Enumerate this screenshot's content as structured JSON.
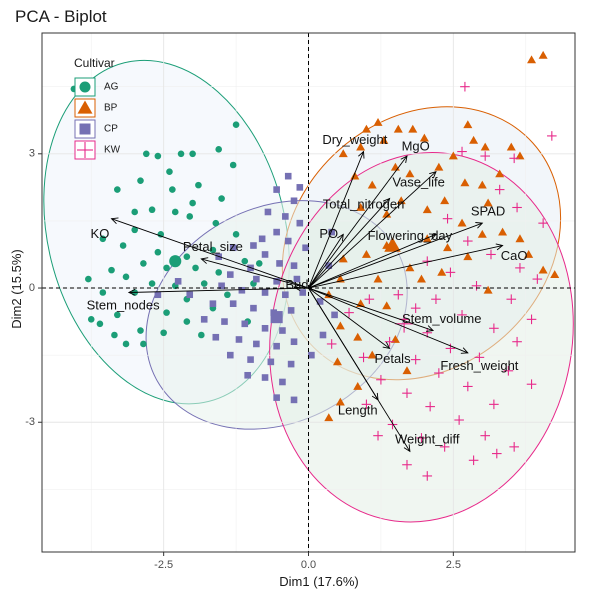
{
  "chart_data": {
    "type": "scatter",
    "title": "PCA - Biplot",
    "xlabel": "Dim1 (17.6%)",
    "ylabel": "Dim2 (15.5%)",
    "xlim": [
      -4.6,
      4.6
    ],
    "ylim": [
      -5.9,
      5.7
    ],
    "xticks": [
      -2.5,
      0.0,
      2.5
    ],
    "xtick_labels": [
      "-2.5",
      "0.0",
      "2.5"
    ],
    "yticks": [
      -3,
      0,
      3
    ],
    "ytick_labels": [
      "-3",
      "0",
      "3"
    ],
    "grid": true,
    "legend": {
      "title": "Cultivar",
      "placement": "top-left",
      "entries": [
        {
          "label": "AG",
          "marker": "circle",
          "color": "#1b9e77"
        },
        {
          "label": "BP",
          "marker": "triangle",
          "color": "#d95f02"
        },
        {
          "label": "CP",
          "marker": "square",
          "color": "#7570b3"
        },
        {
          "label": "KW",
          "marker": "plus",
          "color": "#e7298a"
        }
      ]
    },
    "variables": [
      {
        "name": "KO",
        "x": -3.4,
        "y": 1.55,
        "lx": -3.6,
        "ly": 1.2
      },
      {
        "name": "Petal_size",
        "x": -1.85,
        "y": 0.65,
        "lx": -1.65,
        "ly": 0.9
      },
      {
        "name": "Stem_nodes",
        "x": -3.1,
        "y": -0.1,
        "lx": -3.2,
        "ly": -0.4
      },
      {
        "name": "Bud",
        "x": -0.25,
        "y": 0.02,
        "lx": -0.2,
        "ly": 0.05
      },
      {
        "name": "Dry_weight",
        "x": 0.95,
        "y": 3.05,
        "lx": 0.8,
        "ly": 3.3
      },
      {
        "name": "MgO",
        "x": 1.7,
        "y": 2.95,
        "lx": 1.85,
        "ly": 3.15
      },
      {
        "name": "Vase_life",
        "x": 2.2,
        "y": 2.6,
        "lx": 1.9,
        "ly": 2.35
      },
      {
        "name": "Total_nitrogen",
        "x": 1.4,
        "y": 2.0,
        "lx": 0.95,
        "ly": 1.85
      },
      {
        "name": "SPAD",
        "x": 3.0,
        "y": 1.45,
        "lx": 3.1,
        "ly": 1.7
      },
      {
        "name": "PO",
        "x": 0.6,
        "y": 1.2,
        "lx": 0.35,
        "ly": 1.2
      },
      {
        "name": "Flowering_day",
        "x": 2.2,
        "y": 1.2,
        "lx": 1.75,
        "ly": 1.15
      },
      {
        "name": "CaO",
        "x": 3.35,
        "y": 0.95,
        "lx": 3.55,
        "ly": 0.7
      },
      {
        "name": "Stem_volume",
        "x": 2.15,
        "y": -0.95,
        "lx": 2.3,
        "ly": -0.7
      },
      {
        "name": "Fresh_weight",
        "x": 2.75,
        "y": -1.45,
        "lx": 2.95,
        "ly": -1.75
      },
      {
        "name": "Petals",
        "x": 1.4,
        "y": -1.35,
        "lx": 1.45,
        "ly": -1.6
      },
      {
        "name": "Length",
        "x": 1.2,
        "y": -2.5,
        "lx": 0.85,
        "ly": -2.75
      },
      {
        "name": "Weight_diff",
        "x": 1.75,
        "y": -3.65,
        "lx": 2.05,
        "ly": -3.4
      }
    ],
    "groups": [
      {
        "label": "AG",
        "color": "#1b9e77",
        "marker": "circle",
        "ellipse": {
          "cx": -2.45,
          "cy": 1.25,
          "rx": 2.05,
          "ry": 3.9,
          "angle": -14,
          "fill": "#eef4fb"
        },
        "centroid": [
          -2.3,
          0.6
        ],
        "points": [
          [
            -2.8,
            3.0
          ],
          [
            -2.6,
            2.95
          ],
          [
            -2.2,
            3.0
          ],
          [
            -2.0,
            3.0
          ],
          [
            -1.55,
            3.1
          ],
          [
            -1.3,
            2.75
          ],
          [
            -2.4,
            2.6
          ],
          [
            -2.9,
            2.4
          ],
          [
            -3.3,
            2.2
          ],
          [
            -1.9,
            2.3
          ],
          [
            -1.5,
            2.0
          ],
          [
            -2.7,
            1.75
          ],
          [
            -3.0,
            1.7
          ],
          [
            -2.3,
            1.7
          ],
          [
            -2.05,
            1.6
          ],
          [
            -3.55,
            1.1
          ],
          [
            -3.2,
            0.95
          ],
          [
            -2.6,
            0.8
          ],
          [
            -2.1,
            0.7
          ],
          [
            -1.65,
            0.85
          ],
          [
            -2.85,
            0.55
          ],
          [
            -2.45,
            0.45
          ],
          [
            -1.95,
            0.45
          ],
          [
            -3.4,
            0.4
          ],
          [
            -2.7,
            0.1
          ],
          [
            -2.3,
            0.05
          ],
          [
            -1.8,
            0.1
          ],
          [
            -3.55,
            -0.1
          ],
          [
            -3.0,
            -0.1
          ],
          [
            -2.1,
            -0.25
          ],
          [
            -2.45,
            -0.55
          ],
          [
            -1.65,
            -0.45
          ],
          [
            -3.6,
            -0.8
          ],
          [
            -3.3,
            -0.6
          ],
          [
            -2.9,
            -0.95
          ],
          [
            -2.5,
            -1.0
          ],
          [
            -3.15,
            -1.25
          ],
          [
            -2.85,
            -1.25
          ],
          [
            -3.35,
            -1.05
          ],
          [
            -1.85,
            -1.05
          ],
          [
            -1.05,
            -0.75
          ],
          [
            -1.55,
            0.35
          ],
          [
            -1.1,
            0.6
          ],
          [
            -0.85,
            0.55
          ],
          [
            -1.25,
            1.2
          ],
          [
            -1.6,
            1.45
          ],
          [
            -2.55,
            1.2
          ],
          [
            -3.0,
            1.3
          ],
          [
            -4.05,
            4.45
          ],
          [
            -1.25,
            3.65
          ],
          [
            -2.0,
            1.9
          ],
          [
            -2.35,
            2.2
          ],
          [
            -3.15,
            0.25
          ],
          [
            -2.1,
            -0.75
          ],
          [
            -1.4,
            -0.15
          ],
          [
            -0.95,
            0.1
          ],
          [
            -3.8,
            0.2
          ],
          [
            -3.75,
            -0.7
          ]
        ]
      },
      {
        "label": "BP",
        "color": "#d95f02",
        "marker": "triangle",
        "ellipse": {
          "cx": 1.95,
          "cy": 1.0,
          "rx": 2.15,
          "ry": 3.35,
          "angle": 48,
          "fill": "#e7eef6"
        },
        "centroid": [
          1.45,
          0.95
        ],
        "points": [
          [
            1.2,
            3.7
          ],
          [
            1.0,
            3.55
          ],
          [
            1.55,
            3.55
          ],
          [
            1.8,
            3.55
          ],
          [
            2.0,
            3.35
          ],
          [
            0.9,
            3.15
          ],
          [
            2.75,
            3.65
          ],
          [
            2.85,
            3.3
          ],
          [
            3.05,
            3.15
          ],
          [
            3.5,
            3.15
          ],
          [
            3.65,
            2.95
          ],
          [
            3.85,
            5.1
          ],
          [
            4.05,
            5.2
          ],
          [
            2.5,
            2.95
          ],
          [
            2.25,
            2.7
          ],
          [
            1.5,
            2.7
          ],
          [
            1.75,
            2.55
          ],
          [
            1.1,
            2.3
          ],
          [
            0.8,
            2.5
          ],
          [
            2.7,
            2.35
          ],
          [
            3.0,
            2.3
          ],
          [
            3.3,
            2.55
          ],
          [
            3.1,
            1.9
          ],
          [
            2.35,
            1.95
          ],
          [
            2.05,
            1.75
          ],
          [
            1.6,
            1.95
          ],
          [
            1.35,
            1.65
          ],
          [
            0.9,
            1.8
          ],
          [
            2.65,
            1.45
          ],
          [
            3.0,
            1.2
          ],
          [
            3.35,
            1.25
          ],
          [
            3.65,
            1.1
          ],
          [
            3.8,
            0.75
          ],
          [
            4.05,
            0.4
          ],
          [
            4.25,
            0.3
          ],
          [
            2.05,
            1.1
          ],
          [
            2.4,
            0.9
          ],
          [
            2.75,
            0.7
          ],
          [
            1.35,
            0.95
          ],
          [
            1.0,
            0.75
          ],
          [
            0.6,
            0.65
          ],
          [
            1.75,
            0.45
          ],
          [
            1.95,
            0.2
          ],
          [
            2.3,
            0.35
          ],
          [
            1.2,
            0.2
          ],
          [
            0.55,
            0.2
          ],
          [
            0.35,
            -0.15
          ],
          [
            0.9,
            -0.35
          ],
          [
            1.35,
            -0.4
          ],
          [
            0.55,
            -0.85
          ],
          [
            0.85,
            -1.1
          ],
          [
            1.1,
            -1.5
          ],
          [
            0.5,
            -1.65
          ],
          [
            0.85,
            -2.2
          ],
          [
            0.55,
            -2.55
          ],
          [
            0.35,
            -2.9
          ],
          [
            1.7,
            -1.85
          ],
          [
            1.5,
            -1.15
          ],
          [
            3.1,
            -0.05
          ],
          [
            1.3,
            3.3
          ],
          [
            0.6,
            3.0
          ]
        ]
      },
      {
        "label": "CP",
        "color": "#7570b3",
        "marker": "square",
        "ellipse": {
          "cx": -0.55,
          "cy": -0.6,
          "rx": 1.85,
          "ry": 3.05,
          "angle": 62,
          "fill": "#e8f3ec"
        },
        "centroid": [
          -0.55,
          -0.65
        ],
        "points": [
          [
            -0.35,
            2.5
          ],
          [
            -0.55,
            2.2
          ],
          [
            -0.25,
            1.95
          ],
          [
            -0.7,
            1.7
          ],
          [
            -0.4,
            1.6
          ],
          [
            -0.15,
            1.45
          ],
          [
            -0.55,
            1.25
          ],
          [
            -0.8,
            1.1
          ],
          [
            -0.35,
            1.05
          ],
          [
            -0.05,
            0.9
          ],
          [
            -1.3,
            0.9
          ],
          [
            -1.55,
            0.7
          ],
          [
            -0.75,
            0.75
          ],
          [
            -0.5,
            0.55
          ],
          [
            -0.25,
            0.5
          ],
          [
            -1.0,
            0.45
          ],
          [
            -1.35,
            0.3
          ],
          [
            -0.9,
            0.2
          ],
          [
            -0.55,
            0.15
          ],
          [
            -0.2,
            0.2
          ],
          [
            -1.5,
            0.05
          ],
          [
            -1.15,
            -0.05
          ],
          [
            -0.75,
            -0.1
          ],
          [
            -0.4,
            -0.15
          ],
          [
            -0.1,
            -0.1
          ],
          [
            -1.65,
            -0.35
          ],
          [
            -1.3,
            -0.35
          ],
          [
            -0.95,
            -0.45
          ],
          [
            -0.6,
            -0.55
          ],
          [
            -0.3,
            -0.5
          ],
          [
            -1.8,
            -0.7
          ],
          [
            -1.45,
            -0.75
          ],
          [
            -1.1,
            -0.8
          ],
          [
            -0.75,
            -0.9
          ],
          [
            -0.45,
            -0.95
          ],
          [
            -1.6,
            -1.1
          ],
          [
            -1.2,
            -1.15
          ],
          [
            -0.9,
            -1.25
          ],
          [
            -0.55,
            -1.3
          ],
          [
            -0.25,
            -1.2
          ],
          [
            -1.35,
            -1.5
          ],
          [
            -1.0,
            -1.6
          ],
          [
            -0.65,
            -1.65
          ],
          [
            -0.3,
            -1.7
          ],
          [
            -0.75,
            -2.0
          ],
          [
            -0.45,
            -2.1
          ],
          [
            -0.55,
            -2.45
          ],
          [
            -0.25,
            -2.5
          ],
          [
            0.2,
            -0.3
          ],
          [
            0.35,
            0.5
          ],
          [
            0.45,
            -0.6
          ],
          [
            0.25,
            -1.05
          ],
          [
            0.05,
            -1.5
          ],
          [
            -2.05,
            -0.15
          ],
          [
            -2.25,
            0.15
          ],
          [
            -2.6,
            -0.15
          ],
          [
            -0.95,
            0.95
          ],
          [
            -0.15,
            2.25
          ],
          [
            0.4,
            1.25
          ],
          [
            -1.05,
            -1.95
          ]
        ]
      },
      {
        "label": "KW",
        "color": "#e7298a",
        "marker": "plus",
        "ellipse": {
          "cx": 1.95,
          "cy": -1.1,
          "rx": 2.6,
          "ry": 4.15,
          "angle": 10,
          "fill": "#e3efe6"
        },
        "centroid": [
          1.65,
          -0.8
        ],
        "points": [
          [
            2.7,
            4.5
          ],
          [
            2.65,
            3.05
          ],
          [
            3.05,
            2.95
          ],
          [
            3.55,
            2.9
          ],
          [
            4.2,
            3.4
          ],
          [
            3.3,
            2.2
          ],
          [
            3.6,
            1.8
          ],
          [
            4.05,
            1.45
          ],
          [
            2.4,
            1.55
          ],
          [
            2.75,
            1.05
          ],
          [
            3.15,
            0.75
          ],
          [
            3.65,
            0.45
          ],
          [
            3.95,
            0.2
          ],
          [
            2.05,
            0.6
          ],
          [
            2.45,
            0.35
          ],
          [
            2.9,
            0.05
          ],
          [
            3.5,
            -0.25
          ],
          [
            3.85,
            -0.7
          ],
          [
            2.2,
            -0.25
          ],
          [
            2.65,
            -0.6
          ],
          [
            3.2,
            -0.9
          ],
          [
            3.6,
            -1.2
          ],
          [
            1.65,
            -0.7
          ],
          [
            2.05,
            -1.0
          ],
          [
            2.45,
            -1.35
          ],
          [
            2.95,
            -1.55
          ],
          [
            3.45,
            -1.85
          ],
          [
            3.85,
            -2.15
          ],
          [
            1.4,
            -1.2
          ],
          [
            1.85,
            -1.6
          ],
          [
            2.25,
            -1.9
          ],
          [
            2.75,
            -2.2
          ],
          [
            3.2,
            -2.6
          ],
          [
            1.25,
            -2.05
          ],
          [
            1.7,
            -2.35
          ],
          [
            2.1,
            -2.65
          ],
          [
            2.6,
            -2.95
          ],
          [
            3.05,
            -3.3
          ],
          [
            1.45,
            -3.05
          ],
          [
            1.95,
            -3.35
          ],
          [
            2.35,
            -3.55
          ],
          [
            2.85,
            -3.85
          ],
          [
            3.25,
            -3.7
          ],
          [
            1.0,
            -2.6
          ],
          [
            1.2,
            -3.3
          ],
          [
            1.7,
            -3.95
          ],
          [
            2.05,
            -4.2
          ],
          [
            0.95,
            -1.55
          ],
          [
            0.7,
            -0.55
          ],
          [
            0.4,
            -1.25
          ],
          [
            1.05,
            -0.25
          ],
          [
            1.55,
            -0.15
          ],
          [
            1.85,
            -0.45
          ],
          [
            3.55,
            -3.55
          ]
        ]
      }
    ]
  }
}
